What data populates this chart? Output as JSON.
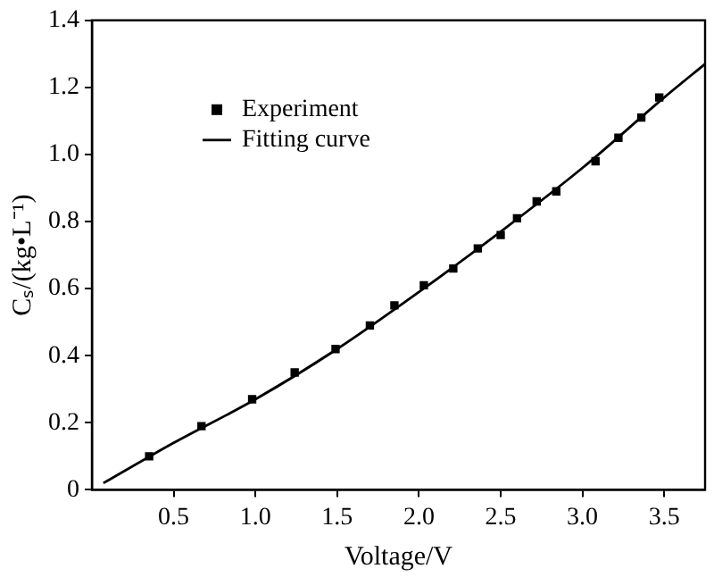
{
  "chart_data": {
    "type": "scatter",
    "xlabel": "Voltage/V",
    "ylabel": "Cₛ/(kg•L⁻¹)",
    "xlim": [
      0,
      3.75
    ],
    "ylim": [
      0,
      1.4
    ],
    "xticks": [
      0.5,
      {
        "value": 1,
        "label": "1.0"
      },
      1.5,
      {
        "value": 2,
        "label": "2.0"
      },
      2.5,
      {
        "value": 3,
        "label": "3.0"
      },
      3.5
    ],
    "yticks": [
      0,
      0.2,
      0.4,
      0.6,
      0.8,
      {
        "value": 1,
        "label": "1.0"
      },
      1.2,
      1.4
    ],
    "grid": false,
    "legend": "top left",
    "marker": "square",
    "series": [
      {
        "name": "Experiment",
        "color": "#000000",
        "x": [
          0.35,
          0.67,
          0.98,
          1.24,
          1.49,
          1.7,
          1.85,
          2.03,
          2.21,
          2.36,
          2.5,
          2.6,
          2.72,
          2.84,
          3.08,
          3.22,
          3.36,
          3.47
        ],
        "values": [
          0.1,
          0.19,
          0.27,
          0.35,
          0.42,
          0.49,
          0.55,
          0.61,
          0.66,
          0.72,
          0.76,
          0.81,
          0.86,
          0.89,
          0.98,
          1.05,
          1.11,
          1.17
        ]
      },
      {
        "name": "Fitting curve",
        "type": "line",
        "color": "#000000",
        "line_style": "solid",
        "marker": "none",
        "x": [
          0.07,
          0.5,
          1.0,
          1.5,
          2.0,
          2.5,
          3.0,
          3.5,
          3.75
        ],
        "values": [
          0.02,
          0.14,
          0.27,
          0.42,
          0.59,
          0.77,
          0.96,
          1.17,
          1.27
        ]
      }
    ]
  }
}
